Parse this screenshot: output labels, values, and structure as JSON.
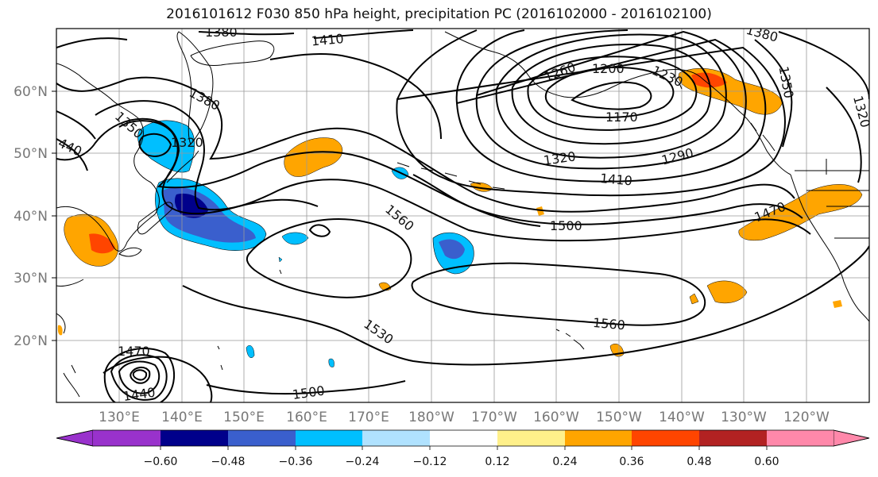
{
  "title": "2016101612 F030 850 hPa height, precipitation PC (2016102000 - 2016102100)",
  "lat_labels": [
    "60°N",
    "50°N",
    "40°N",
    "30°N",
    "20°N"
  ],
  "lon_labels": [
    "130°E",
    "140°E",
    "150°E",
    "160°E",
    "170°E",
    "180°W",
    "170°W",
    "160°W",
    "150°W",
    "140°W",
    "130°W",
    "120°W"
  ],
  "contour_labels": [
    {
      "text": "1380"
    },
    {
      "text": "1410"
    },
    {
      "text": "1380"
    },
    {
      "text": "1350"
    },
    {
      "text": "1320"
    },
    {
      "text": "1380"
    },
    {
      "text": "1350"
    },
    {
      "text": "440"
    },
    {
      "text": "1260"
    },
    {
      "text": "1200"
    },
    {
      "text": "1230"
    },
    {
      "text": "1170"
    },
    {
      "text": "1320"
    },
    {
      "text": "1290"
    },
    {
      "text": "1410"
    },
    {
      "text": "1500"
    },
    {
      "text": "1560"
    },
    {
      "text": "1470"
    },
    {
      "text": "1560"
    },
    {
      "text": "1530"
    },
    {
      "text": "1470"
    },
    {
      "text": "1440"
    },
    {
      "text": "1500"
    },
    {
      "text": "1320"
    }
  ],
  "colorbar": {
    "ticks": [
      "−0.60",
      "−0.48",
      "−0.36",
      "−0.24",
      "−0.12",
      "0.12",
      "0.24",
      "0.36",
      "0.48",
      "0.60"
    ],
    "colors": [
      "#9932cc",
      "#00008b",
      "#3a5fcd",
      "#00bfff",
      "#b0e2ff",
      "#ffffff",
      "#fff08a",
      "#ffa500",
      "#ff4500",
      "#b22222",
      "#ff88aa"
    ]
  }
}
